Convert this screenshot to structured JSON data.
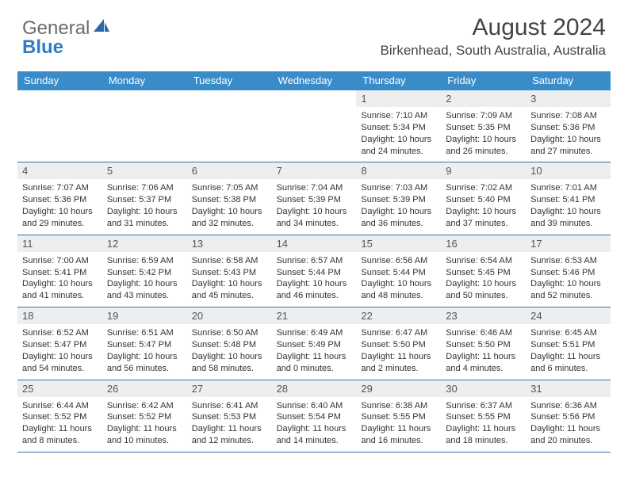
{
  "logo": {
    "text_general": "General",
    "text_blue": "Blue"
  },
  "title": "August 2024",
  "location": "Birkenhead, South Australia, Australia",
  "colors": {
    "header_bg": "#3a8cc9",
    "daynum_bg": "#eceef0",
    "row_border": "#3a6fa0",
    "logo_gray": "#6b6b6b",
    "logo_blue": "#2f7dc0",
    "sail_fill": "#2a6aa8"
  },
  "weekdays": [
    "Sunday",
    "Monday",
    "Tuesday",
    "Wednesday",
    "Thursday",
    "Friday",
    "Saturday"
  ],
  "weeks": [
    [
      null,
      null,
      null,
      null,
      {
        "n": "1",
        "sr": "7:10 AM",
        "ss": "5:34 PM",
        "dl": "10 hours and 24 minutes."
      },
      {
        "n": "2",
        "sr": "7:09 AM",
        "ss": "5:35 PM",
        "dl": "10 hours and 26 minutes."
      },
      {
        "n": "3",
        "sr": "7:08 AM",
        "ss": "5:36 PM",
        "dl": "10 hours and 27 minutes."
      }
    ],
    [
      {
        "n": "4",
        "sr": "7:07 AM",
        "ss": "5:36 PM",
        "dl": "10 hours and 29 minutes."
      },
      {
        "n": "5",
        "sr": "7:06 AM",
        "ss": "5:37 PM",
        "dl": "10 hours and 31 minutes."
      },
      {
        "n": "6",
        "sr": "7:05 AM",
        "ss": "5:38 PM",
        "dl": "10 hours and 32 minutes."
      },
      {
        "n": "7",
        "sr": "7:04 AM",
        "ss": "5:39 PM",
        "dl": "10 hours and 34 minutes."
      },
      {
        "n": "8",
        "sr": "7:03 AM",
        "ss": "5:39 PM",
        "dl": "10 hours and 36 minutes."
      },
      {
        "n": "9",
        "sr": "7:02 AM",
        "ss": "5:40 PM",
        "dl": "10 hours and 37 minutes."
      },
      {
        "n": "10",
        "sr": "7:01 AM",
        "ss": "5:41 PM",
        "dl": "10 hours and 39 minutes."
      }
    ],
    [
      {
        "n": "11",
        "sr": "7:00 AM",
        "ss": "5:41 PM",
        "dl": "10 hours and 41 minutes."
      },
      {
        "n": "12",
        "sr": "6:59 AM",
        "ss": "5:42 PM",
        "dl": "10 hours and 43 minutes."
      },
      {
        "n": "13",
        "sr": "6:58 AM",
        "ss": "5:43 PM",
        "dl": "10 hours and 45 minutes."
      },
      {
        "n": "14",
        "sr": "6:57 AM",
        "ss": "5:44 PM",
        "dl": "10 hours and 46 minutes."
      },
      {
        "n": "15",
        "sr": "6:56 AM",
        "ss": "5:44 PM",
        "dl": "10 hours and 48 minutes."
      },
      {
        "n": "16",
        "sr": "6:54 AM",
        "ss": "5:45 PM",
        "dl": "10 hours and 50 minutes."
      },
      {
        "n": "17",
        "sr": "6:53 AM",
        "ss": "5:46 PM",
        "dl": "10 hours and 52 minutes."
      }
    ],
    [
      {
        "n": "18",
        "sr": "6:52 AM",
        "ss": "5:47 PM",
        "dl": "10 hours and 54 minutes."
      },
      {
        "n": "19",
        "sr": "6:51 AM",
        "ss": "5:47 PM",
        "dl": "10 hours and 56 minutes."
      },
      {
        "n": "20",
        "sr": "6:50 AM",
        "ss": "5:48 PM",
        "dl": "10 hours and 58 minutes."
      },
      {
        "n": "21",
        "sr": "6:49 AM",
        "ss": "5:49 PM",
        "dl": "11 hours and 0 minutes."
      },
      {
        "n": "22",
        "sr": "6:47 AM",
        "ss": "5:50 PM",
        "dl": "11 hours and 2 minutes."
      },
      {
        "n": "23",
        "sr": "6:46 AM",
        "ss": "5:50 PM",
        "dl": "11 hours and 4 minutes."
      },
      {
        "n": "24",
        "sr": "6:45 AM",
        "ss": "5:51 PM",
        "dl": "11 hours and 6 minutes."
      }
    ],
    [
      {
        "n": "25",
        "sr": "6:44 AM",
        "ss": "5:52 PM",
        "dl": "11 hours and 8 minutes."
      },
      {
        "n": "26",
        "sr": "6:42 AM",
        "ss": "5:52 PM",
        "dl": "11 hours and 10 minutes."
      },
      {
        "n": "27",
        "sr": "6:41 AM",
        "ss": "5:53 PM",
        "dl": "11 hours and 12 minutes."
      },
      {
        "n": "28",
        "sr": "6:40 AM",
        "ss": "5:54 PM",
        "dl": "11 hours and 14 minutes."
      },
      {
        "n": "29",
        "sr": "6:38 AM",
        "ss": "5:55 PM",
        "dl": "11 hours and 16 minutes."
      },
      {
        "n": "30",
        "sr": "6:37 AM",
        "ss": "5:55 PM",
        "dl": "11 hours and 18 minutes."
      },
      {
        "n": "31",
        "sr": "6:36 AM",
        "ss": "5:56 PM",
        "dl": "11 hours and 20 minutes."
      }
    ]
  ],
  "labels": {
    "sunrise": "Sunrise: ",
    "sunset": "Sunset: ",
    "daylight": "Daylight: "
  }
}
